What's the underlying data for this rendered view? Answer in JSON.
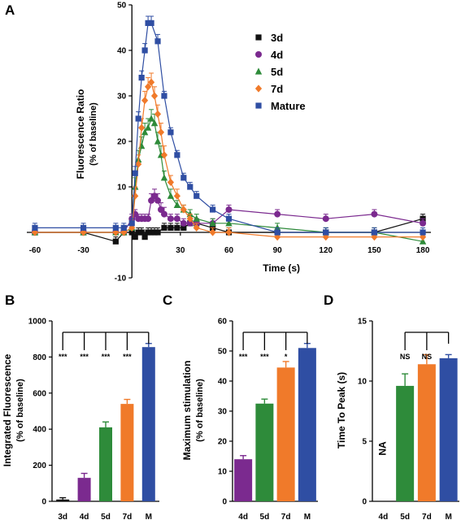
{
  "panels": {
    "a": "A",
    "b": "B",
    "c": "C",
    "d": "D"
  },
  "chart_data": [
    {
      "panel": "A",
      "type": "line",
      "xlabel": "Time (s)",
      "ylabel": [
        "Fluorescence Ratio",
        "(% of baseline)"
      ],
      "xlim": [
        -65,
        185
      ],
      "ylim": [
        -10,
        50
      ],
      "xticks": [
        -60,
        -30,
        30,
        60,
        90,
        120,
        150,
        180
      ],
      "yticks": [
        -10,
        10,
        20,
        30,
        40,
        50
      ],
      "legend_position": "top-right",
      "series": [
        {
          "name": "3d",
          "color": "#111111",
          "marker": "square",
          "x": [
            -60,
            -30,
            -10,
            -5,
            0,
            2,
            4,
            6,
            8,
            10,
            12,
            14,
            16,
            20,
            24,
            28,
            32,
            36,
            40,
            50,
            60,
            90,
            120,
            150,
            180
          ],
          "y": [
            0,
            0,
            -2,
            0,
            0,
            -1,
            0,
            0,
            -1,
            0,
            0,
            0,
            0,
            1,
            1,
            1,
            1,
            2,
            2,
            1,
            0,
            0,
            0,
            0,
            3
          ],
          "err": [
            1,
            1,
            1,
            1,
            1,
            1,
            1,
            1,
            1,
            1,
            1,
            1,
            1,
            1,
            1,
            1,
            1,
            1,
            1,
            1,
            1,
            1,
            1,
            1,
            1
          ]
        },
        {
          "name": "4d",
          "color": "#7b2a8f",
          "marker": "circle",
          "x": [
            -60,
            -30,
            -10,
            -5,
            0,
            2,
            4,
            6,
            8,
            10,
            12,
            14,
            16,
            18,
            20,
            24,
            28,
            32,
            36,
            40,
            50,
            60,
            90,
            120,
            150,
            180
          ],
          "y": [
            0,
            0,
            0,
            0,
            3,
            4,
            3,
            3,
            3,
            3,
            7,
            8,
            7,
            5,
            4,
            3,
            3,
            2,
            2,
            2,
            2,
            5,
            4,
            3,
            4,
            2
          ],
          "err": [
            1,
            1,
            1,
            1,
            1,
            1,
            1,
            1,
            1,
            1,
            1.5,
            1.5,
            1.5,
            1.5,
            1.5,
            1,
            1,
            1,
            1,
            1,
            1,
            1,
            1,
            1,
            1,
            1
          ]
        },
        {
          "name": "5d",
          "color": "#2e8b3a",
          "marker": "triangle",
          "x": [
            -60,
            -30,
            -10,
            -5,
            0,
            2,
            4,
            6,
            8,
            10,
            12,
            14,
            16,
            18,
            20,
            24,
            28,
            32,
            36,
            40,
            50,
            60,
            90,
            120,
            150,
            180
          ],
          "y": [
            0,
            0,
            0,
            0,
            1,
            10,
            16,
            19,
            22,
            23,
            25,
            24,
            20,
            17,
            12,
            8,
            6,
            5,
            4,
            3,
            2,
            2,
            1,
            0,
            0,
            -2
          ],
          "err": [
            1,
            1,
            1,
            1,
            1,
            2,
            2,
            2,
            2,
            2,
            2,
            2,
            2,
            2,
            1.5,
            1.5,
            1,
            1,
            1,
            1,
            1,
            1,
            1,
            1,
            1,
            1
          ]
        },
        {
          "name": "7d",
          "color": "#f07a2a",
          "marker": "diamond",
          "x": [
            -60,
            -30,
            -10,
            -5,
            0,
            2,
            4,
            6,
            8,
            10,
            12,
            14,
            16,
            18,
            20,
            24,
            28,
            32,
            36,
            40,
            50,
            60,
            90,
            120,
            150,
            180
          ],
          "y": [
            0,
            0,
            0,
            0,
            1,
            8,
            15,
            23,
            29,
            32,
            33,
            30,
            26,
            22,
            17,
            11,
            8,
            5,
            3,
            1,
            0,
            0,
            -1,
            -1,
            -1,
            -1
          ],
          "err": [
            1,
            1,
            1,
            1,
            1,
            2,
            2,
            2,
            2,
            2,
            2,
            2,
            2,
            2,
            2,
            1.5,
            1.5,
            1,
            1,
            1,
            1,
            1,
            1,
            1,
            1,
            1
          ]
        },
        {
          "name": "Mature",
          "color": "#2f4ea3",
          "marker": "square",
          "x": [
            -60,
            -30,
            -10,
            -5,
            0,
            2,
            4,
            6,
            8,
            10,
            12,
            16,
            20,
            24,
            28,
            32,
            36,
            40,
            50,
            60,
            90,
            120,
            150,
            180
          ],
          "y": [
            1,
            1,
            1,
            1,
            2,
            13,
            25,
            34,
            40,
            46,
            46,
            42,
            30,
            22,
            17,
            12,
            10,
            8,
            5,
            3,
            0,
            0,
            0,
            0
          ],
          "err": [
            1,
            1,
            1,
            1,
            1,
            1.5,
            1.5,
            1.5,
            1.5,
            1.5,
            1.5,
            1.5,
            1,
            1,
            1,
            1,
            1,
            1,
            1,
            1,
            1,
            1,
            1,
            1
          ]
        }
      ]
    },
    {
      "panel": "B",
      "type": "bar",
      "ylabel": [
        "Integrated Fluorescence",
        "(% of baseline)"
      ],
      "ylim": [
        0,
        1000
      ],
      "yticks": [
        0,
        200,
        400,
        600,
        800,
        1000
      ],
      "categories": [
        "3d",
        "4d",
        "5d",
        "7d",
        "M"
      ],
      "values": [
        10,
        130,
        410,
        540,
        855
      ],
      "errors": [
        10,
        25,
        30,
        25,
        20
      ],
      "colors": [
        "#111111",
        "#7b2a8f",
        "#2e8b3a",
        "#f07a2a",
        "#2f4ea3"
      ],
      "significance": [
        "***",
        "***",
        "***",
        "***"
      ]
    },
    {
      "panel": "C",
      "type": "bar",
      "ylabel": [
        "Maximum stimulation",
        "(% of baseline)"
      ],
      "ylim": [
        0,
        60
      ],
      "yticks": [
        0,
        10,
        20,
        30,
        40,
        50,
        60
      ],
      "categories": [
        "4d",
        "5d",
        "7d",
        "M"
      ],
      "values": [
        14,
        32.5,
        44.5,
        51
      ],
      "errors": [
        1.2,
        1.5,
        2,
        1.5
      ],
      "colors": [
        "#7b2a8f",
        "#2e8b3a",
        "#f07a2a",
        "#2f4ea3"
      ],
      "significance": [
        "***",
        "***",
        "*"
      ]
    },
    {
      "panel": "D",
      "type": "bar",
      "ylabel": [
        "Time To Peak (s)"
      ],
      "ylim": [
        0,
        15
      ],
      "yticks": [
        0,
        5,
        10,
        15
      ],
      "categories": [
        "4d",
        "5d",
        "7d",
        "M"
      ],
      "values": [
        null,
        9.6,
        11.4,
        11.9
      ],
      "errors": [
        0,
        1,
        0.8,
        0.3
      ],
      "colors": [
        "#7b2a8f",
        "#2e8b3a",
        "#f07a2a",
        "#2f4ea3"
      ],
      "bar_note": "NA",
      "significance": [
        "NS",
        "NS"
      ]
    }
  ]
}
